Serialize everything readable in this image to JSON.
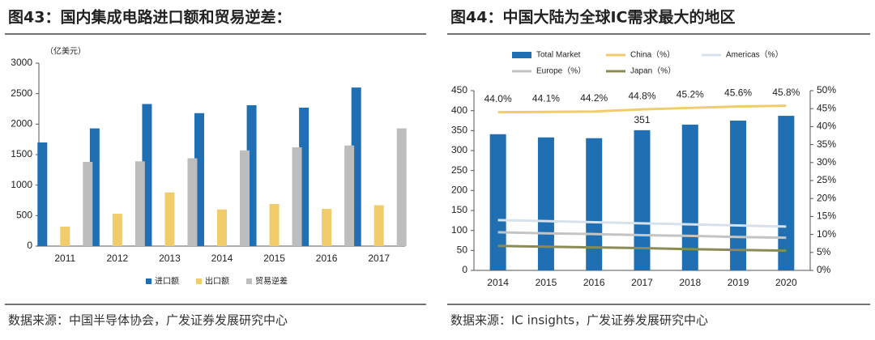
{
  "chart_data": [
    {
      "type": "bar",
      "title": "图43：国内集成电路进口额和贸易逆差：",
      "y_label": "（亿美元）",
      "categories": [
        "2011",
        "2012",
        "2013",
        "2014",
        "2015",
        "2016",
        "2017"
      ],
      "series": [
        {
          "name": "进口额",
          "color": "#1f6fb2",
          "values": [
            1700,
            1930,
            2330,
            2180,
            2310,
            2270,
            2600
          ]
        },
        {
          "name": "出口额",
          "color": "#f0cc6b",
          "values": [
            320,
            530,
            880,
            600,
            690,
            610,
            670
          ]
        },
        {
          "name": "贸易逆差",
          "color": "#bdbdbd",
          "values": [
            1380,
            1390,
            1440,
            1570,
            1620,
            1650,
            1930
          ]
        }
      ],
      "ylim": [
        0,
        3000
      ],
      "yticks": [
        0,
        500,
        1000,
        1500,
        2000,
        2500,
        3000
      ],
      "source": "数据来源：中国半导体协会，广发证券发展研究中心"
    },
    {
      "type": "combo",
      "title": "图44：中国大陆为全球IC需求最大的地区",
      "categories": [
        "2014",
        "2015",
        "2016",
        "2017",
        "2018",
        "2019",
        "2020"
      ],
      "series": [
        {
          "name": "Total Market",
          "kind": "bar",
          "color": "#1f6fb2",
          "values": [
            341,
            333,
            331,
            351,
            365,
            375,
            387
          ],
          "value_labels": [
            null,
            null,
            null,
            "351",
            null,
            null,
            null
          ]
        },
        {
          "name": "China（%）",
          "kind": "line",
          "axis": "y2",
          "color": "#f0cc6b",
          "values": [
            44.0,
            44.1,
            44.2,
            44.8,
            45.2,
            45.6,
            45.8
          ],
          "value_labels": [
            "44.0%",
            "44.1%",
            "44.2%",
            "44.8%",
            "45.2%",
            "45.6%",
            "45.8%"
          ]
        },
        {
          "name": "Americas（%）",
          "kind": "line",
          "axis": "y2",
          "color": "#d6e1ec",
          "values": [
            14.0,
            13.7,
            13.4,
            13.1,
            12.8,
            12.5,
            12.2
          ]
        },
        {
          "name": "Europe（%）",
          "kind": "line",
          "axis": "y2",
          "color": "#c4c4c4",
          "values": [
            10.6,
            10.3,
            10.1,
            9.8,
            9.6,
            9.3,
            9.1
          ]
        },
        {
          "name": "Japan（%）",
          "kind": "line",
          "axis": "y2",
          "color": "#8b8b55",
          "values": [
            6.8,
            6.6,
            6.4,
            6.2,
            5.9,
            5.7,
            5.5
          ]
        }
      ],
      "ylim": [
        0,
        450
      ],
      "yticks": [
        0,
        50,
        100,
        150,
        200,
        250,
        300,
        350,
        400,
        450
      ],
      "y2lim": [
        0,
        50
      ],
      "y2ticks": [
        {
          "value": 0,
          "label": "0%"
        },
        {
          "value": 5,
          "label": "5%"
        },
        {
          "value": 10,
          "label": "10%"
        },
        {
          "value": 15,
          "label": "15%"
        },
        {
          "value": 20,
          "label": "20%"
        },
        {
          "value": 25,
          "label": "25%"
        },
        {
          "value": 30,
          "label": "30%"
        },
        {
          "value": 35,
          "label": "35%"
        },
        {
          "value": 40,
          "label": "40%"
        },
        {
          "value": 45,
          "label": "45%"
        },
        {
          "value": 50,
          "label": "50%"
        }
      ],
      "source": "数据来源：IC insights，广发证券发展研究中心"
    }
  ]
}
